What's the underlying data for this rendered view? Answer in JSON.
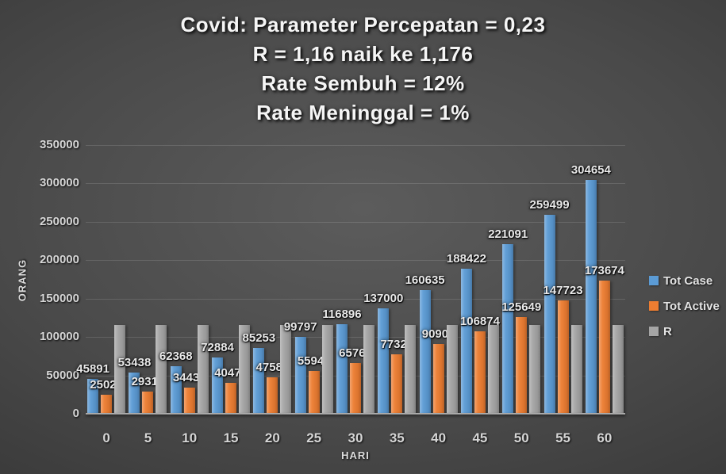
{
  "chart_data": {
    "type": "bar",
    "title_lines": [
      "Covid: Parameter Percepatan = 0,23",
      "R = 1,16 naik ke 1,176",
      "Rate Sembuh = 12%",
      "Rate Meninggal = 1%"
    ],
    "xlabel": "HARI",
    "ylabel": "ORANG",
    "ylim": [
      0,
      350000
    ],
    "ytick_step": 50000,
    "ytick_labels": [
      "0",
      "50000",
      "100000",
      "150000",
      "200000",
      "250000",
      "300000",
      "350000"
    ],
    "categories": [
      "0",
      "5",
      "10",
      "15",
      "20",
      "25",
      "30",
      "35",
      "40",
      "45",
      "50",
      "55",
      "60"
    ],
    "grid": true,
    "legend_position": "right",
    "series": [
      {
        "name": "Tot Case",
        "color": "#5B9BD5",
        "show_labels": true,
        "values": [
          45891,
          53438,
          62368,
          72884,
          85253,
          99797,
          116896,
          137000,
          160635,
          188422,
          221091,
          259499,
          304654
        ]
      },
      {
        "name": "Tot Active",
        "color": "#ED7D31",
        "show_labels": true,
        "values": [
          25022,
          29316,
          34435,
          40475,
          47582,
          55940,
          65767,
          77321,
          90904,
          106874,
          125649,
          147723,
          173674
        ]
      },
      {
        "name": "R",
        "color": "#A5A5A5",
        "show_labels": false,
        "values": [
          116000,
          116000,
          116000,
          116000,
          116000,
          116000,
          116000,
          116000,
          116000,
          116000,
          116000,
          116000,
          116000
        ]
      }
    ]
  }
}
